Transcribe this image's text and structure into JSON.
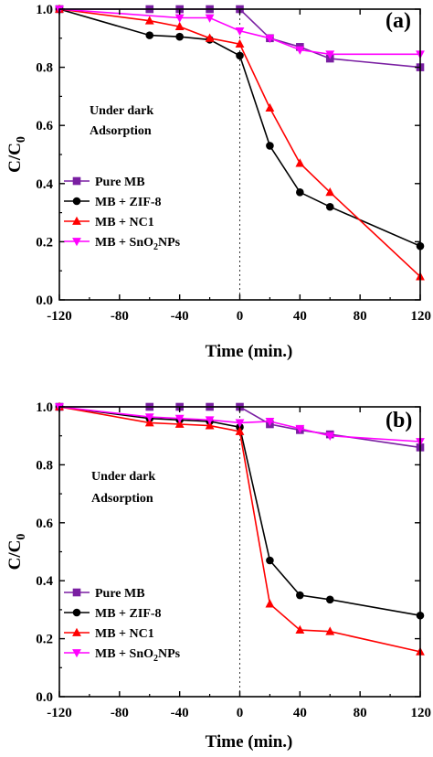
{
  "shared_labels": {
    "annotation_line1": "Under dark",
    "annotation_line2": "Adsorption"
  },
  "chart_data": [
    {
      "type": "line",
      "panel_tag": "(a)",
      "xlabel": "Time (min.)",
      "ylabel": "C/C",
      "ylabel_subscript": "0",
      "xlim": [
        -120,
        120
      ],
      "ylim": [
        0.0,
        1.0
      ],
      "xticks": [
        -120,
        -80,
        -40,
        0,
        40,
        80,
        120
      ],
      "xtick_labels": [
        "-120",
        "-80",
        "-40",
        "0",
        "40",
        "80",
        "120"
      ],
      "yticks": [
        0.0,
        0.2,
        0.4,
        0.6,
        0.8,
        1.0
      ],
      "ytick_labels": [
        "0.0",
        "0.2",
        "0.4",
        "0.6",
        "0.8",
        "1.0"
      ],
      "dashed_line_x": 0,
      "legend_position": "lower-left",
      "series": [
        {
          "name": "Pure MB",
          "color": "#7a1fa2",
          "marker": "square",
          "x": [
            -120,
            -60,
            -40,
            -20,
            0,
            20,
            40,
            60,
            120
          ],
          "y": [
            1.0,
            1.0,
            1.0,
            1.0,
            1.0,
            0.9,
            0.87,
            0.83,
            0.8
          ]
        },
        {
          "name": "MB + ZIF-8",
          "color": "#000000",
          "marker": "circle",
          "x": [
            -120,
            -60,
            -40,
            -20,
            0,
            20,
            40,
            60,
            120
          ],
          "y": [
            1.0,
            0.91,
            0.905,
            0.895,
            0.84,
            0.53,
            0.37,
            0.32,
            0.185
          ]
        },
        {
          "name": "MB + NC1",
          "color": "#ff0000",
          "marker": "triangle-up",
          "x": [
            -120,
            -60,
            -40,
            -20,
            0,
            20,
            40,
            60,
            120
          ],
          "y": [
            1.0,
            0.96,
            0.94,
            0.9,
            0.88,
            0.66,
            0.47,
            0.37,
            0.08
          ]
        },
        {
          "name": "MB + SnO2NPs",
          "name_main": "MB + SnO",
          "name_sub": "2",
          "name_tail": "NPs",
          "color": "#ff00ff",
          "marker": "triangle-down",
          "x": [
            -120,
            -40,
            -20,
            0,
            20,
            40,
            60,
            120
          ],
          "y": [
            1.0,
            0.97,
            0.97,
            0.925,
            0.9,
            0.86,
            0.845,
            0.845
          ]
        }
      ]
    },
    {
      "type": "line",
      "panel_tag": "(b)",
      "xlabel": "Time (min.)",
      "ylabel": "C/C",
      "ylabel_subscript": "0",
      "xlim": [
        -120,
        120
      ],
      "ylim": [
        0.0,
        1.0
      ],
      "xticks": [
        -120,
        -80,
        -40,
        0,
        40,
        80,
        120
      ],
      "xtick_labels": [
        "-120",
        "-80",
        "-40",
        "0",
        "40",
        "80",
        "120"
      ],
      "yticks": [
        0.0,
        0.2,
        0.4,
        0.6,
        0.8,
        1.0
      ],
      "ytick_labels": [
        "0.0",
        "0.2",
        "0.4",
        "0.6",
        "0.8",
        "1.0"
      ],
      "dashed_line_x": 0,
      "legend_position": "lower-left",
      "series": [
        {
          "name": "Pure MB",
          "color": "#7a1fa2",
          "marker": "square",
          "x": [
            -120,
            -60,
            -40,
            -20,
            0,
            20,
            40,
            60,
            120
          ],
          "y": [
            1.0,
            1.0,
            1.0,
            1.0,
            1.0,
            0.94,
            0.92,
            0.905,
            0.86
          ]
        },
        {
          "name": "MB + ZIF-8",
          "color": "#000000",
          "marker": "circle",
          "x": [
            -120,
            -60,
            -40,
            -20,
            0,
            20,
            40,
            60,
            120
          ],
          "y": [
            1.0,
            0.96,
            0.955,
            0.95,
            0.93,
            0.47,
            0.35,
            0.335,
            0.28
          ]
        },
        {
          "name": "MB + NC1",
          "color": "#ff0000",
          "marker": "triangle-up",
          "x": [
            -120,
            -60,
            -40,
            -20,
            0,
            20,
            40,
            60,
            120
          ],
          "y": [
            1.0,
            0.945,
            0.94,
            0.935,
            0.915,
            0.32,
            0.23,
            0.225,
            0.155
          ]
        },
        {
          "name": "MB + SnO2NPs",
          "name_main": "MB + SnO",
          "name_sub": "2",
          "name_tail": "NPs",
          "color": "#ff00ff",
          "marker": "triangle-down",
          "x": [
            -120,
            -60,
            -40,
            -20,
            0,
            20,
            40,
            60,
            120
          ],
          "y": [
            1.0,
            0.965,
            0.96,
            0.955,
            0.945,
            0.95,
            0.925,
            0.9,
            0.88
          ]
        }
      ]
    }
  ]
}
